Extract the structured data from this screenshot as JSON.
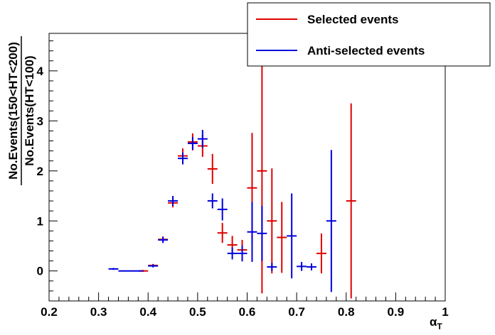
{
  "chart_data": {
    "type": "scatter",
    "xlabel": "α",
    "xlabel_sub": "T",
    "ylabel_numerator": "No.Events(150<HT<200)",
    "ylabel_denominator": "No.Events(HT<100)",
    "xlim": [
      0.2,
      1.0
    ],
    "ylim": [
      -0.6,
      4.75
    ],
    "x_ticks": [
      0.2,
      0.3,
      0.4,
      0.5,
      0.6,
      0.7,
      0.8,
      0.9,
      1.0
    ],
    "x_tick_labels": [
      "0.2",
      "0.3",
      "0.4",
      "0.5",
      "0.6",
      "0.7",
      "0.8",
      "0.9",
      "1"
    ],
    "y_ticks": [
      0,
      1,
      2,
      3,
      4
    ],
    "y_tick_labels": [
      "0",
      "1",
      "2",
      "3",
      "4"
    ],
    "grid": false,
    "legend_position": "top-right",
    "series": [
      {
        "name": "Selected events",
        "color": "#e00000",
        "points": [
          {
            "x": 0.39,
            "xerr": 0.01,
            "y": 0.0,
            "yerr": 0.02
          },
          {
            "x": 0.41,
            "xerr": 0.01,
            "y": 0.11,
            "yerr": 0.03
          },
          {
            "x": 0.43,
            "xerr": 0.01,
            "y": 0.63,
            "yerr": 0.06
          },
          {
            "x": 0.45,
            "xerr": 0.01,
            "y": 1.36,
            "yerr": 0.09
          },
          {
            "x": 0.47,
            "xerr": 0.01,
            "y": 2.3,
            "yerr": 0.15
          },
          {
            "x": 0.49,
            "xerr": 0.01,
            "y": 2.58,
            "yerr": 0.17
          },
          {
            "x": 0.51,
            "xerr": 0.01,
            "y": 2.5,
            "yerr": 0.22
          },
          {
            "x": 0.53,
            "xerr": 0.01,
            "y": 2.04,
            "yerr": 0.3
          },
          {
            "x": 0.55,
            "xerr": 0.01,
            "y": 0.76,
            "yerr": 0.2
          },
          {
            "x": 0.57,
            "xerr": 0.01,
            "y": 0.52,
            "yerr": 0.18
          },
          {
            "x": 0.59,
            "xerr": 0.01,
            "y": 0.42,
            "yerr": 0.2
          },
          {
            "x": 0.61,
            "xerr": 0.01,
            "y": 1.66,
            "yerr": 1.1
          },
          {
            "x": 0.63,
            "xerr": 0.01,
            "y": 2.0,
            "yerr": 2.45
          },
          {
            "x": 0.65,
            "xerr": 0.01,
            "y": 1.0,
            "yerr": 1.05
          },
          {
            "x": 0.67,
            "xerr": 0.01,
            "y": 0.67,
            "yerr": 0.71
          },
          {
            "x": 0.75,
            "xerr": 0.01,
            "y": 0.35,
            "yerr": 0.4
          },
          {
            "x": 0.81,
            "xerr": 0.01,
            "y": 1.4,
            "yerr": 1.95
          }
        ]
      },
      {
        "name": "Anti-selected events",
        "color": "#0000dd",
        "points": [
          {
            "x": 0.33,
            "xerr": 0.01,
            "y": 0.04,
            "yerr": 0.02
          },
          {
            "x": 0.365,
            "xerr": 0.025,
            "y": 0.0,
            "yerr": 0.0
          },
          {
            "x": 0.41,
            "xerr": 0.01,
            "y": 0.1,
            "yerr": 0.03
          },
          {
            "x": 0.43,
            "xerr": 0.01,
            "y": 0.62,
            "yerr": 0.06
          },
          {
            "x": 0.45,
            "xerr": 0.01,
            "y": 1.4,
            "yerr": 0.1
          },
          {
            "x": 0.47,
            "xerr": 0.01,
            "y": 2.25,
            "yerr": 0.12
          },
          {
            "x": 0.49,
            "xerr": 0.01,
            "y": 2.55,
            "yerr": 0.13
          },
          {
            "x": 0.51,
            "xerr": 0.01,
            "y": 2.64,
            "yerr": 0.18
          },
          {
            "x": 0.53,
            "xerr": 0.01,
            "y": 1.4,
            "yerr": 0.15
          },
          {
            "x": 0.55,
            "xerr": 0.01,
            "y": 1.23,
            "yerr": 0.22
          },
          {
            "x": 0.57,
            "xerr": 0.01,
            "y": 0.35,
            "yerr": 0.12
          },
          {
            "x": 0.59,
            "xerr": 0.01,
            "y": 0.35,
            "yerr": 0.16
          },
          {
            "x": 0.61,
            "xerr": 0.01,
            "y": 0.78,
            "yerr": 0.6
          },
          {
            "x": 0.63,
            "xerr": 0.01,
            "y": 0.75,
            "yerr": 0.55
          },
          {
            "x": 0.65,
            "xerr": 0.01,
            "y": 0.08,
            "yerr": 0.08
          },
          {
            "x": 0.69,
            "xerr": 0.01,
            "y": 0.7,
            "yerr": 0.85
          },
          {
            "x": 0.71,
            "xerr": 0.01,
            "y": 0.09,
            "yerr": 0.09
          },
          {
            "x": 0.73,
            "xerr": 0.01,
            "y": 0.08,
            "yerr": 0.07
          },
          {
            "x": 0.77,
            "xerr": 0.01,
            "y": 1.0,
            "yerr": 1.42
          }
        ]
      }
    ]
  }
}
